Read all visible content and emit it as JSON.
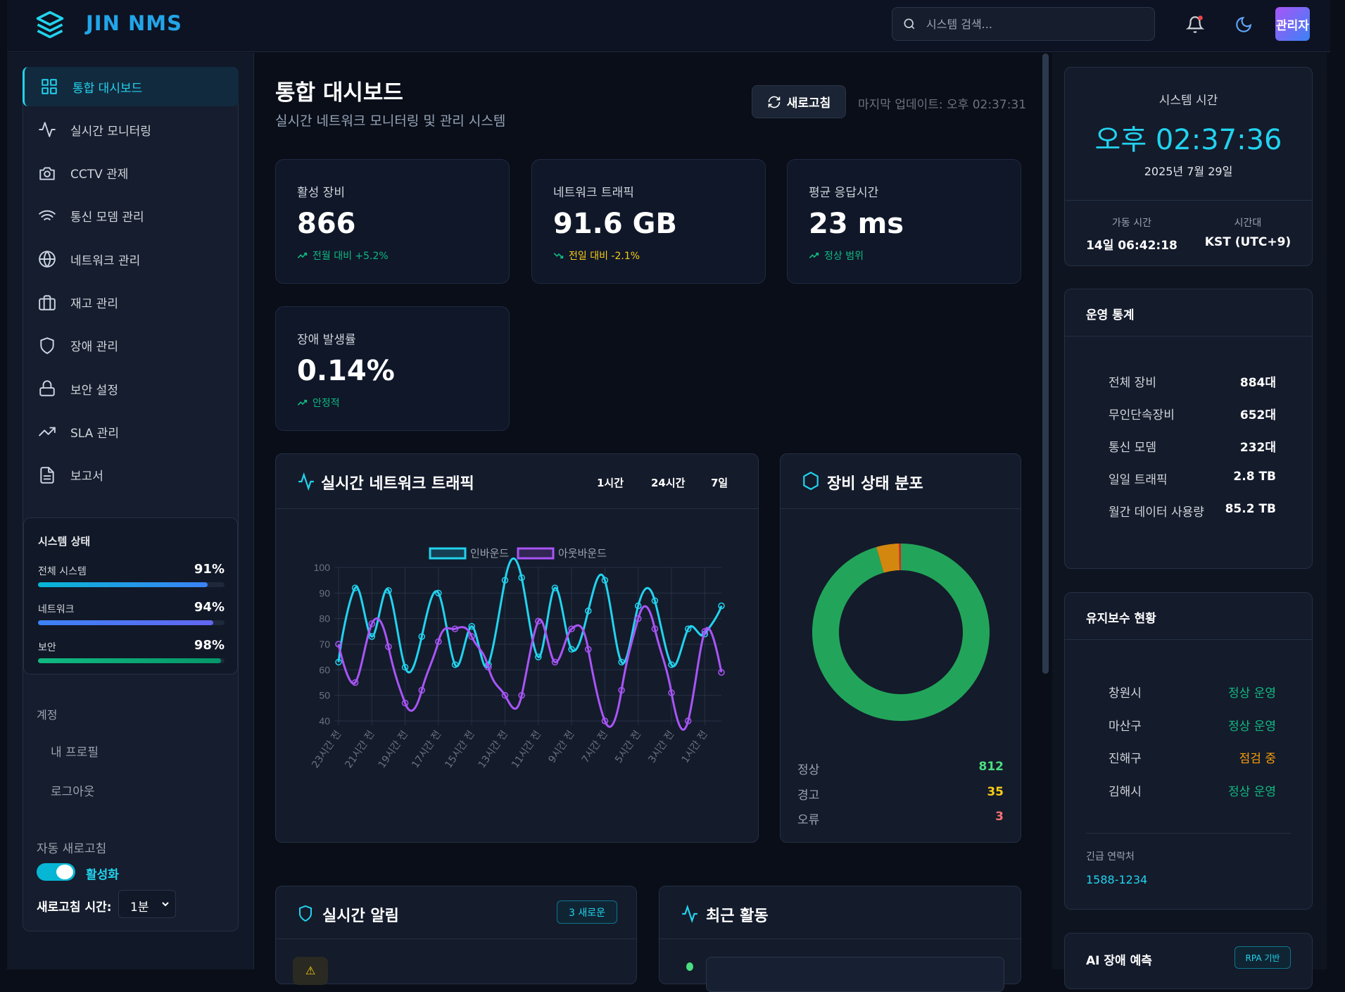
{
  "header": {
    "brand": "JIN NMS",
    "search_placeholder": "시스템 검색...",
    "user": "관리자"
  },
  "sidebar": {
    "items": [
      {
        "label": "통합 대시보드",
        "icon": "grid-icon",
        "active": true
      },
      {
        "label": "실시간 모니터링",
        "icon": "activity-icon"
      },
      {
        "label": "CCTV 관제",
        "icon": "camera-icon"
      },
      {
        "label": "통신 모뎀 관리",
        "icon": "wifi-icon"
      },
      {
        "label": "네트워크 관리",
        "icon": "globe-icon"
      },
      {
        "label": "재고 관리",
        "icon": "briefcase-icon"
      },
      {
        "label": "장애 관리",
        "icon": "shield-icon"
      },
      {
        "label": "보안 설정",
        "icon": "lock-icon"
      },
      {
        "label": "SLA 관리",
        "icon": "trending-up-icon"
      },
      {
        "label": "보고서",
        "icon": "file-icon"
      }
    ],
    "system_status": {
      "title": "시스템 상태",
      "rows": [
        {
          "label": "전체 시스템",
          "value": "91%",
          "percent": 91
        },
        {
          "label": "네트워크",
          "value": "94%",
          "percent": 94
        },
        {
          "label": "보안",
          "value": "98%",
          "percent": 98
        }
      ]
    },
    "account": {
      "title": "계정",
      "profile": "내 프로필",
      "logout": "로그아웃"
    },
    "auto_refresh": {
      "title": "자동 새로고침",
      "toggle_label": "활성화",
      "enabled": true,
      "interval_label": "새로고침 시간:",
      "interval_value": "1분"
    }
  },
  "main": {
    "title": "통합 대시보드",
    "subtitle": "실시간 네트워크 모니터링 및 관리 시스템",
    "refresh_label": "새로고침",
    "last_update": "마지막 업데이트: 오후 02:37:31",
    "stats": [
      {
        "label": "활성 장비",
        "value": "866",
        "trend": "전월 대비 +5.2%",
        "color": "#10b981",
        "dir": "up"
      },
      {
        "label": "네트워크 트래픽",
        "value": "91.6 GB",
        "trend": "전일 대비 -2.1%",
        "color": "#facc15",
        "dir": "down"
      },
      {
        "label": "평균 응답시간",
        "value": "23 ms",
        "trend": "정상 범위",
        "color": "#10b981",
        "dir": "up"
      },
      {
        "label": "장애 발생률",
        "value": "0.14%",
        "trend": "안정적",
        "color": "#10b981",
        "dir": "up"
      }
    ],
    "traffic": {
      "title": "실시간 네트워크 트래픽",
      "ranges": [
        "1시간",
        "24시간",
        "7일"
      ]
    },
    "distribution": {
      "title": "장비 상태 분포",
      "rows": [
        {
          "label": "정상",
          "value": "812",
          "color": "#4ade80"
        },
        {
          "label": "경고",
          "value": "35",
          "color": "#facc15"
        },
        {
          "label": "오류",
          "value": "3",
          "color": "#f87171"
        }
      ]
    },
    "alerts": {
      "title": "실시간 알림",
      "badge": "3 새로운"
    },
    "activity": {
      "title": "최근 활동"
    }
  },
  "chart_data": [
    {
      "type": "line",
      "title": "실시간 네트워크 트래픽",
      "x_labels": [
        "23시간 전",
        "21시간 전",
        "19시간 전",
        "17시간 전",
        "15시간 전",
        "13시간 전",
        "11시간 전",
        "9시간 전",
        "7시간 전",
        "5시간 전",
        "3시간 전",
        "1시간 전"
      ],
      "ylim": [
        40,
        100
      ],
      "yticks": [
        "100",
        "90",
        "80",
        "70",
        "60",
        "50",
        "40"
      ],
      "legend": "top",
      "series": [
        {
          "name": "인바운드",
          "color": "#22d3ee",
          "values": [
            63,
            92,
            73,
            91,
            61,
            73,
            90,
            62,
            77,
            62,
            95,
            96,
            65,
            92,
            68,
            83,
            95,
            63,
            85,
            87,
            62,
            76,
            74,
            85
          ]
        },
        {
          "name": "아웃바운드",
          "color": "#a855f7",
          "values": [
            70,
            55,
            78,
            69,
            47,
            52,
            71,
            76,
            73,
            61,
            50,
            50,
            79,
            63,
            76,
            68,
            40,
            52,
            80,
            76,
            51,
            40,
            75,
            59
          ]
        }
      ]
    },
    {
      "type": "pie",
      "title": "장비 상태 분포",
      "categories": [
        "정상",
        "경고",
        "오류"
      ],
      "values": [
        812,
        35,
        3
      ],
      "colors": [
        "#22a55a",
        "#d4870f",
        "#dc2626"
      ]
    }
  ],
  "right": {
    "clock": {
      "title": "시스템 시간",
      "time": "오후 02:37:36",
      "date": "2025년 7월 29일",
      "uptime_label": "가동 시간",
      "uptime": "14일 06:42:18",
      "tz_label": "시간대",
      "tz": "KST (UTC+9)"
    },
    "ops": {
      "title": "운영 통계",
      "rows": [
        {
          "label": "전체 장비",
          "value": "884대"
        },
        {
          "label": "무인단속장비",
          "value": "652대"
        },
        {
          "label": "통신 모뎀",
          "value": "232대"
        },
        {
          "label": "일일 트래픽",
          "value": "2.8 TB"
        },
        {
          "label": "월간 데이터 사용량",
          "value": "85.2 TB"
        }
      ]
    },
    "maint": {
      "title": "유지보수 현황",
      "rows": [
        {
          "label": "창원시",
          "status": "정상 운영",
          "color": "#10b981"
        },
        {
          "label": "마산구",
          "status": "정상 운영",
          "color": "#10b981"
        },
        {
          "label": "진해구",
          "status": "점검 중",
          "color": "#f59e0b"
        },
        {
          "label": "김해시",
          "status": "정상 운영",
          "color": "#10b981"
        }
      ],
      "contact_label": "긴급 연락처",
      "contact": "1588-1234"
    },
    "ai": {
      "title": "AI 장애 예측",
      "badge": "RPA 기반"
    }
  }
}
